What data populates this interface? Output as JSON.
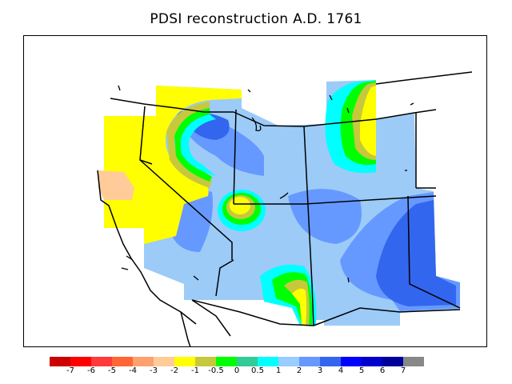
{
  "title": "PDSI reconstruction A.D. 1761",
  "legend": {
    "colors": [
      "#cc0000",
      "#ff0000",
      "#ff3a3a",
      "#ff6633",
      "#ffa070",
      "#ffcc99",
      "#ffff00",
      "#c8c83c",
      "#00ff00",
      "#33cc99",
      "#00ffff",
      "#99ccff",
      "#6699ff",
      "#3366ee",
      "#0000ff",
      "#0000cc",
      "#000099",
      "#888888"
    ],
    "labels": [
      "-7",
      "-6",
      "-5",
      "-4",
      "-3",
      "-2",
      "-1",
      "-0.5",
      "0",
      "0.5",
      "1",
      "2",
      "3",
      "4",
      "5",
      "6",
      "7"
    ]
  },
  "palette": {
    "background_region": "#9ccbf8",
    "wet": "#6699ff",
    "wetter": "#3366ee",
    "very_wet": "#0000ff",
    "near_normal": "#00ffff",
    "slightly_dry": "#00ff00",
    "dry": "#c8c83c",
    "drier": "#ffff00",
    "very_dry": "#ffcc99",
    "frame": "#000000"
  }
}
